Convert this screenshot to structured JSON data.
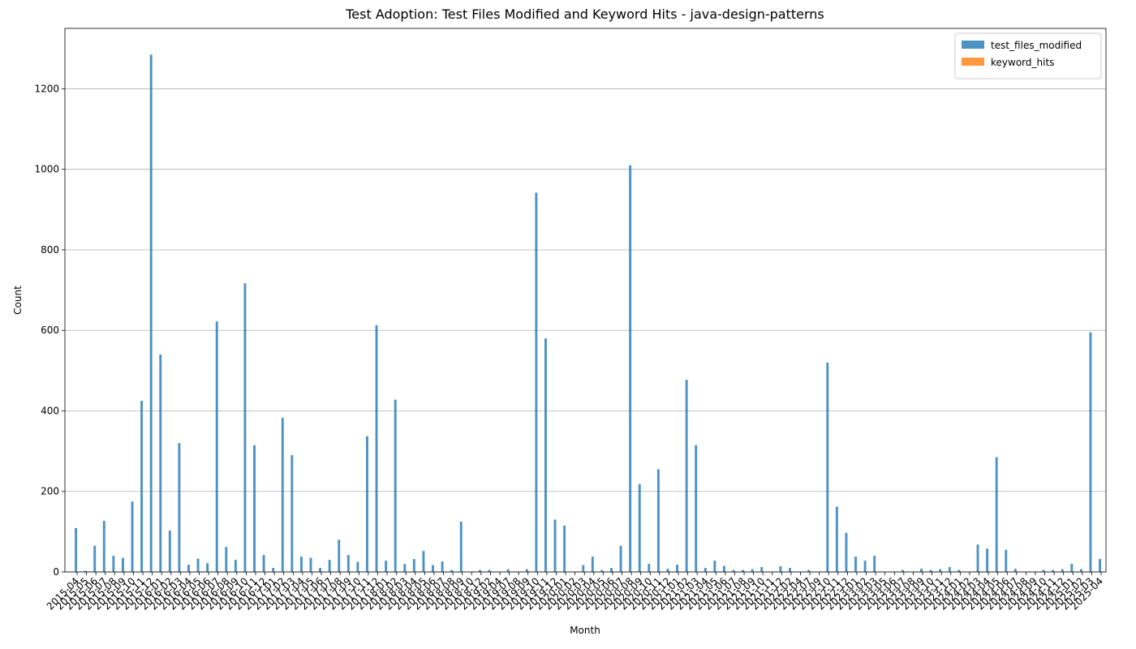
{
  "chart_data": {
    "type": "bar",
    "title": "Test Adoption: Test Files Modified and Keyword Hits - java-design-patterns",
    "xlabel": "Month",
    "ylabel": "Count",
    "categories": [
      "2015-04",
      "2015-05",
      "2015-06",
      "2015-07",
      "2015-08",
      "2015-09",
      "2015-10",
      "2015-11",
      "2015-12",
      "2016-01",
      "2016-02",
      "2016-03",
      "2016-04",
      "2016-05",
      "2016-06",
      "2016-07",
      "2016-08",
      "2016-09",
      "2016-10",
      "2016-11",
      "2016-12",
      "2017-01",
      "2017-02",
      "2017-03",
      "2017-04",
      "2017-05",
      "2017-06",
      "2017-07",
      "2017-08",
      "2017-09",
      "2017-10",
      "2017-11",
      "2017-12",
      "2018-01",
      "2018-02",
      "2018-03",
      "2018-04",
      "2018-05",
      "2018-06",
      "2018-07",
      "2018-08",
      "2018-09",
      "2018-10",
      "2018-12",
      "2019-02",
      "2019-04",
      "2019-07",
      "2019-08",
      "2019-09",
      "2019-10",
      "2019-11",
      "2019-12",
      "2020-01",
      "2020-02",
      "2020-03",
      "2020-04",
      "2020-05",
      "2020-06",
      "2020-07",
      "2020-08",
      "2020-09",
      "2020-10",
      "2020-11",
      "2020-12",
      "2021-01",
      "2021-02",
      "2021-03",
      "2021-04",
      "2021-05",
      "2021-06",
      "2021-07",
      "2021-08",
      "2021-09",
      "2021-10",
      "2021-11",
      "2021-12",
      "2022-02",
      "2022-04",
      "2022-07",
      "2022-09",
      "2022-10",
      "2022-11",
      "2022-12",
      "2023-01",
      "2023-02",
      "2023-03",
      "2023-05",
      "2023-06",
      "2023-07",
      "2023-08",
      "2023-09",
      "2023-10",
      "2023-11",
      "2023-12",
      "2024-01",
      "2024-02",
      "2024-03",
      "2024-04",
      "2024-05",
      "2024-06",
      "2024-07",
      "2024-08",
      "2024-09",
      "2024-10",
      "2024-11",
      "2024-12",
      "2025-01",
      "2025-02",
      "2025-03",
      "2025-04"
    ],
    "series": [
      {
        "name": "test_files_modified",
        "color": "#1f77b4",
        "values": [
          109,
          3,
          65,
          127,
          40,
          35,
          175,
          425,
          1285,
          540,
          103,
          320,
          18,
          33,
          22,
          622,
          62,
          30,
          717,
          315,
          42,
          10,
          383,
          290,
          38,
          35,
          10,
          30,
          80,
          42,
          25,
          337,
          613,
          28,
          428,
          20,
          32,
          52,
          17,
          26,
          5,
          125,
          0,
          5,
          5,
          0,
          7,
          0,
          7,
          942,
          580,
          130,
          115,
          0,
          17,
          38,
          5,
          10,
          65,
          1010,
          218,
          20,
          255,
          8,
          18,
          477,
          315,
          10,
          28,
          15,
          5,
          5,
          7,
          12,
          0,
          14,
          10,
          0,
          5,
          0,
          520,
          162,
          97,
          38,
          28,
          40,
          0,
          0,
          5,
          0,
          8,
          5,
          7,
          12,
          5,
          0,
          68,
          58,
          285,
          55,
          8,
          0,
          0,
          5,
          5,
          7,
          20,
          7,
          595,
          32
        ]
      },
      {
        "name": "keyword_hits",
        "color": "#ff7f0e",
        "values": [
          0,
          0,
          0,
          0,
          0,
          0,
          0,
          0,
          0,
          0,
          0,
          0,
          0,
          0,
          0,
          0,
          0,
          0,
          0,
          0,
          0,
          0,
          0,
          0,
          0,
          0,
          0,
          0,
          0,
          0,
          0,
          0,
          0,
          0,
          0,
          0,
          0,
          0,
          0,
          0,
          0,
          0,
          0,
          0,
          0,
          0,
          0,
          0,
          0,
          0,
          0,
          0,
          0,
          0,
          0,
          0,
          0,
          0,
          0,
          0,
          0,
          0,
          0,
          0,
          0,
          0,
          0,
          0,
          0,
          0,
          0,
          0,
          0,
          0,
          0,
          0,
          0,
          0,
          0,
          0,
          0,
          0,
          0,
          0,
          0,
          0,
          0,
          0,
          0,
          0,
          0,
          0,
          0,
          0,
          0,
          0,
          0,
          0,
          0,
          0,
          0,
          0,
          0,
          0,
          0,
          0,
          0,
          0,
          0,
          0
        ]
      }
    ],
    "ylim": [
      0,
      1350
    ],
    "yticks": [
      0,
      200,
      400,
      600,
      800,
      1000,
      1200
    ],
    "grid": true,
    "legend": "upper right"
  }
}
